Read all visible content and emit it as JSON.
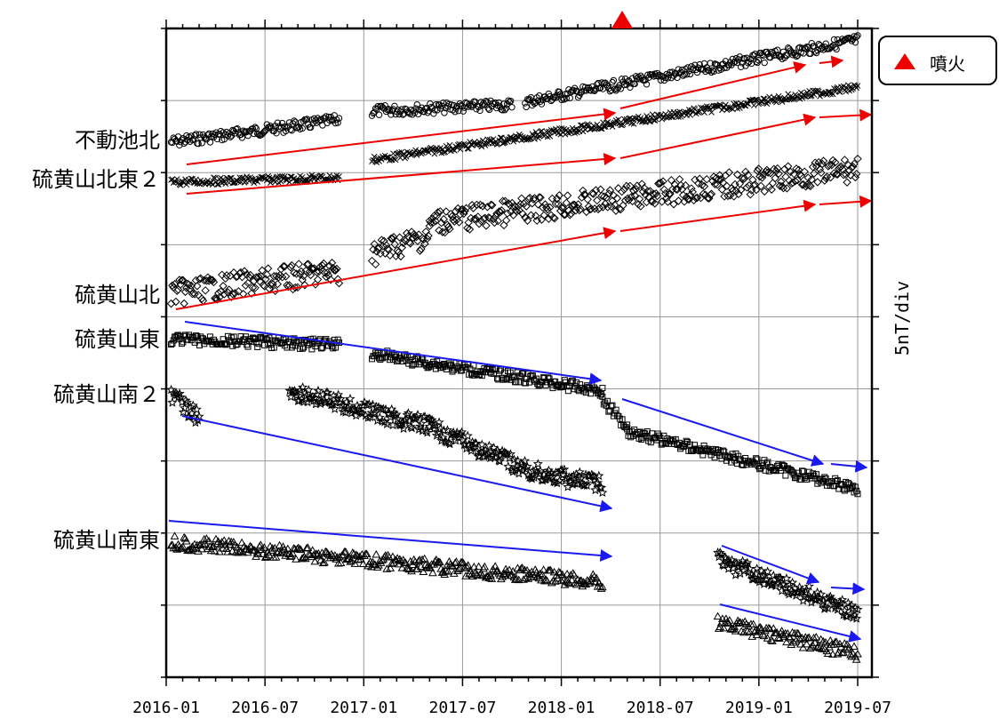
{
  "chart_data": {
    "type": "scatter",
    "title": "",
    "xlabel": "",
    "ylabel": "5nT/div",
    "x_ticks": [
      "2016-01",
      "2016-07",
      "2017-01",
      "2017-07",
      "2018-01",
      "2018-07",
      "2019-01",
      "2019-07"
    ],
    "xlim": [
      "2016-01",
      "2019-08"
    ],
    "grid": true,
    "ydivisions": 9,
    "eruption": {
      "label": "噴火",
      "date": "2018-04",
      "color": "#ee0000"
    },
    "stations": [
      {
        "name": "不動池北",
        "marker": "circle",
        "trend": "increasing"
      },
      {
        "name": "硫黄山北東２",
        "marker": "cross",
        "trend": "increasing"
      },
      {
        "name": "硫黄山北",
        "marker": "diamond",
        "trend": "increasing"
      },
      {
        "name": "硫黄山東",
        "marker": "square",
        "trend": "decreasing"
      },
      {
        "name": "硫黄山南２",
        "marker": "star",
        "trend": "decreasing"
      },
      {
        "name": "硫黄山南東",
        "marker": "triangle",
        "trend": "decreasing"
      }
    ],
    "trend_colors": {
      "increasing": "#ee0000",
      "decreasing": "#1a1aee"
    }
  },
  "legend": {
    "label": "噴火",
    "icon": "red-triangle-icon"
  }
}
